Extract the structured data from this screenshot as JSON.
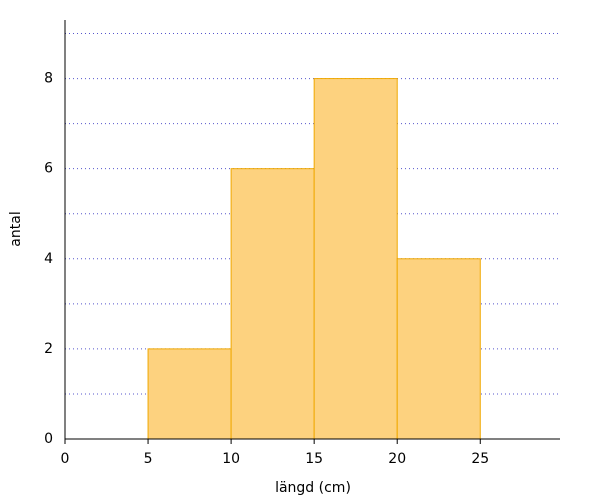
{
  "chart_data": {
    "type": "histogram",
    "x_label": "längd (cm)",
    "y_label": "antal",
    "bins": [
      5,
      10,
      15,
      20,
      25
    ],
    "values": [
      2,
      6,
      8,
      4
    ],
    "color": "#fdd27f",
    "edge_color": "#f0a800",
    "xlim": [
      0,
      29.8
    ],
    "xticks": [
      0,
      5,
      10,
      15,
      20,
      25
    ],
    "ylim": [
      0,
      9.3
    ],
    "yticks": [
      0,
      2,
      4,
      6,
      8
    ],
    "yminorticks": [
      1,
      3,
      5,
      7,
      9
    ],
    "grid": true
  }
}
